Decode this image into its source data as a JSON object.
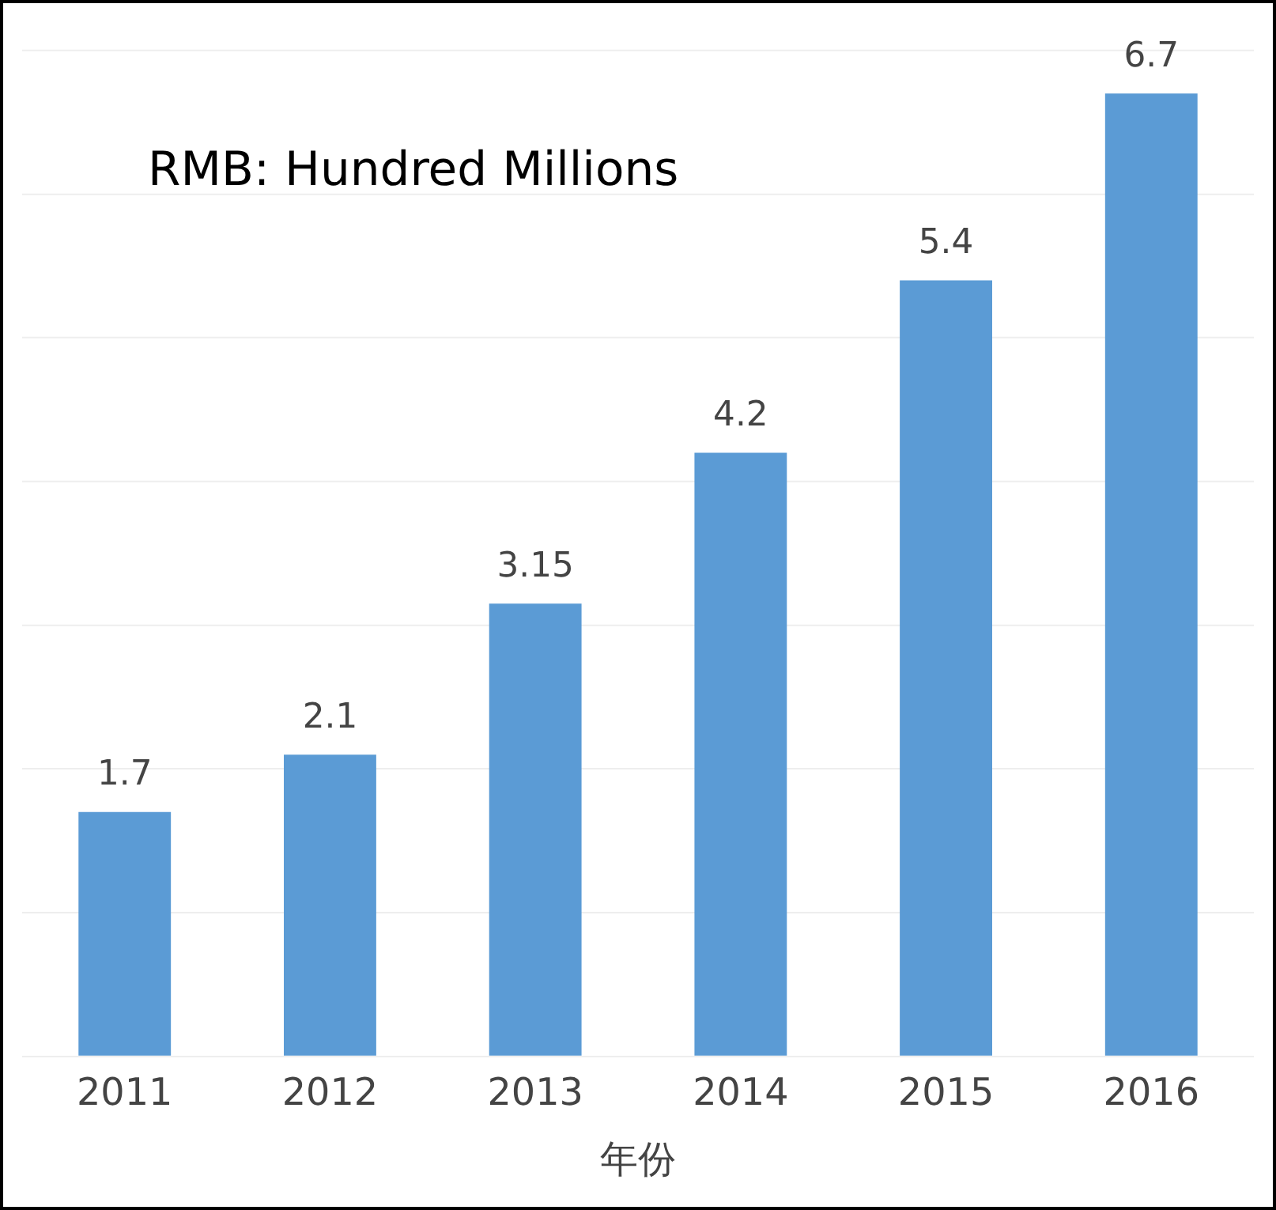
{
  "chart_data": {
    "type": "bar",
    "xlabel": "年份",
    "annotations": [
      "RMB: Hundred Millions"
    ],
    "categories": [
      "2011",
      "2012",
      "2013",
      "2014",
      "2015",
      "2016"
    ],
    "values": [
      1.7,
      2.1,
      3.15,
      4.2,
      5.4,
      6.7
    ],
    "color": "#5b9bd5",
    "ylim": [
      0,
      7
    ],
    "yticks": [
      {
        "value": 0,
        "label": null
      },
      {
        "value": 1,
        "label": null
      },
      {
        "value": 2,
        "label": null
      },
      {
        "value": 3,
        "label": null
      },
      {
        "value": 4,
        "label": null
      },
      {
        "value": 5,
        "label": null
      },
      {
        "value": 6,
        "label": null
      },
      {
        "value": 7,
        "label": null
      }
    ],
    "tick_labels": "x",
    "grid": "y",
    "data_labels": true
  }
}
